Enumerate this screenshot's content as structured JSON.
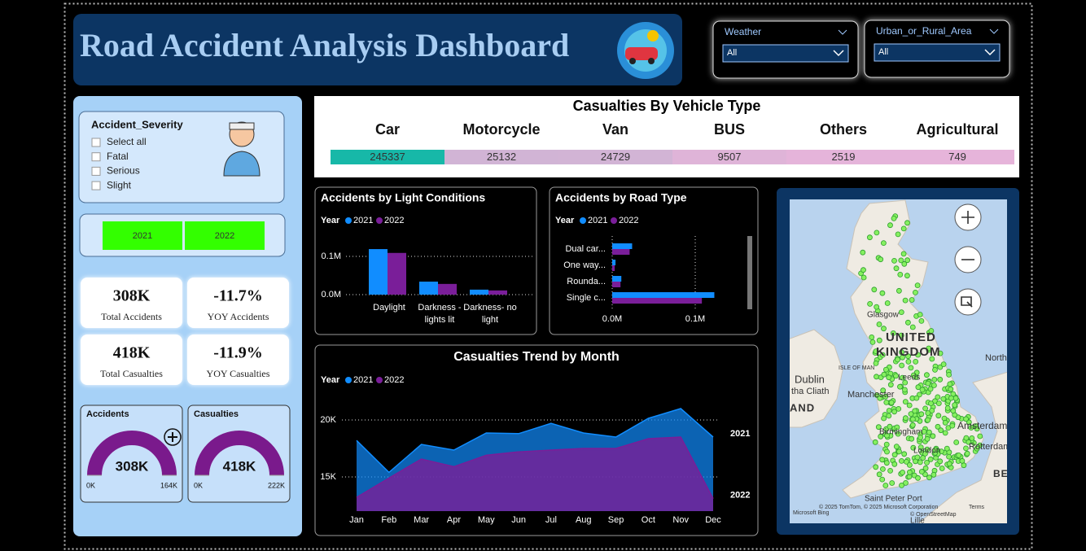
{
  "header": {
    "title": "Road Accident Analysis Dashboard"
  },
  "filters": [
    {
      "label": "Weather",
      "value": "All"
    },
    {
      "label": "Urban_or_Rural_Area",
      "value": "All"
    }
  ],
  "severity_slicer": {
    "title": "Accident_Severity",
    "options": [
      "Select all",
      "Fatal",
      "Serious",
      "Slight"
    ]
  },
  "year_slicer": {
    "options": [
      "2021",
      "2022"
    ]
  },
  "kpis": [
    {
      "value": "308K",
      "label": "Total Accidents"
    },
    {
      "value": "-11.7%",
      "label": "YOY Accidents"
    },
    {
      "value": "418K",
      "label": "Total Casualties"
    },
    {
      "value": "-11.9%",
      "label": "YOY Casualties"
    }
  ],
  "map": {
    "labels": [
      "Glasgow",
      "UNITED",
      "KINGDOM",
      "ISLE OF MAN",
      "Dublin",
      "tha Cliath",
      "AND",
      "Manchester",
      "Leeds",
      "Birmingham",
      "London",
      "Amsterdam",
      "Rotterdam",
      "North",
      "BE",
      "Saint Peter Port",
      "Lille",
      "© 2025 TomTom, © 2025 Microsoft Corporation",
      "Terms",
      "© OpenStreetMap",
      "Microsoft Bing"
    ]
  },
  "chart_data": [
    {
      "type": "heatmap",
      "title": "Casualties By Vehicle Type",
      "categories": [
        "Car",
        "Motorcycle",
        "Van",
        "BUS",
        "Others",
        "Agricultural"
      ],
      "values": [
        245337,
        25132,
        24729,
        9507,
        2519,
        749
      ],
      "color_scale": [
        "#e6b4da",
        "#17b8a8"
      ]
    },
    {
      "type": "bar",
      "title": "Accidents by Light Conditions",
      "legend_title": "Year",
      "categories": [
        "Daylight",
        "Darkness - lights lit",
        "Darkness- no light"
      ],
      "series": [
        {
          "name": "2021",
          "color": "#118dff",
          "values": [
            0.119,
            0.034,
            0.013
          ]
        },
        {
          "name": "2022",
          "color": "#7a1e99",
          "values": [
            0.109,
            0.028,
            0.011
          ]
        }
      ],
      "ylim": [
        0,
        0.15
      ],
      "yticks": [
        {
          "value": 0,
          "label": "0.0M"
        },
        {
          "value": 0.1,
          "label": "0.1M"
        }
      ],
      "grid": true
    },
    {
      "type": "hbar",
      "title": "Accidents by Road Type",
      "legend_title": "Year",
      "categories": [
        "Dual car...",
        "One way...",
        "Rounda...",
        "Single c..."
      ],
      "series": [
        {
          "name": "2021",
          "color": "#118dff",
          "values": [
            0.024,
            0.004,
            0.011,
            0.123
          ]
        },
        {
          "name": "2022",
          "color": "#7a1e99",
          "values": [
            0.021,
            0.003,
            0.01,
            0.108
          ]
        }
      ],
      "xlim": [
        0,
        0.16
      ],
      "xticks": [
        {
          "value": 0,
          "label": "0.0M"
        },
        {
          "value": 0.1,
          "label": "0.1M"
        }
      ],
      "grid": true
    },
    {
      "type": "area",
      "title": "Casualties Trend by Month",
      "legend_title": "Year",
      "categories": [
        "Jan",
        "Feb",
        "Mar",
        "Apr",
        "May",
        "Jun",
        "Jul",
        "Aug",
        "Sep",
        "Oct",
        "Nov",
        "Dec"
      ],
      "series": [
        {
          "name": "2021",
          "color": "#118dff",
          "values": [
            18200,
            15400,
            17860,
            17360,
            18860,
            18800,
            19700,
            18860,
            18500,
            20140,
            21000,
            18500
          ]
        },
        {
          "name": "2022",
          "color": "#7a1e99",
          "values": [
            13200,
            14900,
            16570,
            15900,
            16900,
            17200,
            17360,
            17500,
            17500,
            18360,
            18500,
            13100
          ]
        }
      ],
      "ylim": [
        12000,
        21500
      ],
      "yticks": [
        {
          "value": 15000,
          "label": "15K"
        },
        {
          "value": 20000,
          "label": "20K"
        }
      ],
      "grid": true
    },
    {
      "type": "gauge",
      "title": "Accidents",
      "value": 308000,
      "value_label": "308K",
      "lim": [
        0,
        164000
      ],
      "ticks": [
        {
          "value": 0,
          "label": "0K"
        },
        {
          "value": 164000,
          "label": "164K"
        }
      ],
      "color": "#7a1a8c"
    },
    {
      "type": "gauge",
      "title": "Casualties",
      "value": 418000,
      "value_label": "418K",
      "lim": [
        0,
        222000
      ],
      "ticks": [
        {
          "value": 0,
          "label": "0K"
        },
        {
          "value": 222000,
          "label": "222K"
        }
      ],
      "color": "#7a1a8c"
    }
  ]
}
